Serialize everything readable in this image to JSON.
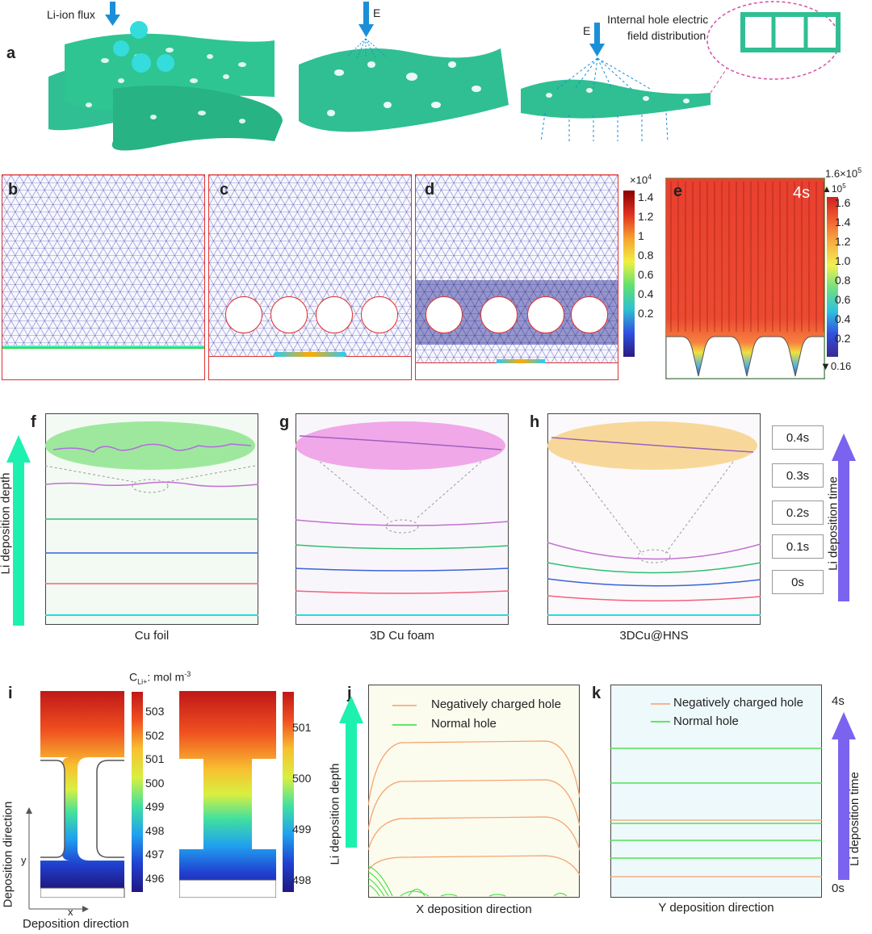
{
  "panels": {
    "a": "a",
    "b": "b",
    "c": "c",
    "d": "d",
    "e": "e",
    "f": "f",
    "g": "g",
    "h": "h",
    "i": "i",
    "j": "j",
    "k": "k"
  },
  "panel_a": {
    "flux_label": "Li-ion flux",
    "e_label_1": "E",
    "e_label_2": "E",
    "hole_label_1": "Internal hole electric",
    "hole_label_2": "field distribution"
  },
  "colorbar_bd": {
    "exponent": "×10",
    "exp_sup": "4",
    "ticks": [
      "1.4",
      "1.2",
      "1",
      "0.8",
      "0.6",
      "0.4",
      "0.2"
    ]
  },
  "colorbar_e": {
    "max": "1.6×10",
    "max_sup": "5",
    "exponent": "▲10",
    "exp_sup": "5",
    "min": "▼0.16",
    "ticks": [
      "1.6",
      "1.4",
      "1.2",
      "1.0",
      "0.8",
      "0.6",
      "0.4",
      "0.2"
    ],
    "time_label": "4s"
  },
  "deposition": {
    "y_axis": "Li deposition depth",
    "right_axis": "Li deposition time",
    "captions": [
      "Cu foil",
      "3D Cu foam",
      "3DCu@HNS"
    ],
    "legend": [
      {
        "label": "0.4s",
        "color": "#e070e0"
      },
      {
        "label": "0.3s",
        "color": "#2fbf6f"
      },
      {
        "label": "0.2s",
        "color": "#5b7be8"
      },
      {
        "label": "0.1s",
        "color": "#f2627a"
      },
      {
        "label": "0s",
        "color": "#22dede"
      }
    ]
  },
  "panel_i": {
    "unit_main": "C",
    "unit_sub": "Li+",
    "unit_rest": ": mol m",
    "unit_sup": "-3",
    "left_ticks": [
      "503",
      "502",
      "501",
      "500",
      "499",
      "498",
      "497",
      "496"
    ],
    "right_ticks": [
      "501",
      "500",
      "499",
      "498"
    ],
    "axis_y": "Deposition direction",
    "axis_x": "Deposition direction",
    "y_letter": "y",
    "x_letter": "x"
  },
  "panel_j": {
    "legend": [
      "Negatively charged hole",
      "Normal hole"
    ],
    "xlabel": "X deposition direction",
    "ylabel": "Li deposition depth"
  },
  "panel_k": {
    "legend": [
      "Negatively charged hole",
      "Normal hole"
    ],
    "xlabel": "Y deposition direction",
    "ylabel": "Li deposition time",
    "top": "4s",
    "bottom": "0s"
  },
  "colors": {
    "teal": "#2fbf93",
    "arrow_green": "#1ef0b0",
    "arrow_purple": "#7b63f0",
    "orange": "#f5a06a",
    "green": "#33dd33",
    "blue_arrow": "#1a8fd8"
  }
}
